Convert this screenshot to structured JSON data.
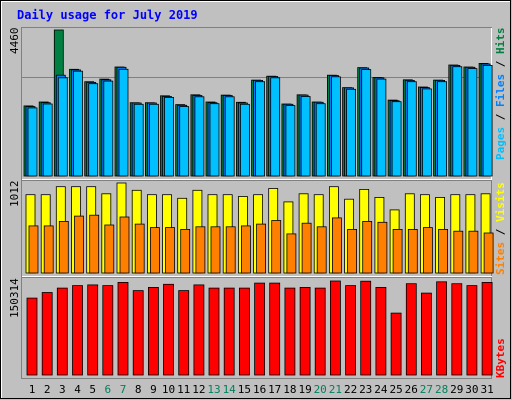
{
  "title": "Daily usage for July 2019",
  "colors": {
    "background": "#c0c0c0",
    "title_text": "#0000ff",
    "hits": "#008040",
    "files": "#0080ff",
    "pages": "#00c0ff",
    "visits": "#ffff00",
    "sites": "#ff8000",
    "kbytes": "#ff0000",
    "weekend_day_label": "#00805c",
    "weekday_label": "#000000"
  },
  "panels": {
    "top": {
      "max_label": "4460",
      "legend": [
        {
          "label": "Pages",
          "color": "#00c0ff"
        },
        {
          "label": "Files",
          "color": "#0080ff"
        },
        {
          "label": "Hits",
          "color": "#008040"
        }
      ]
    },
    "middle": {
      "max_label": "1012",
      "legend": [
        {
          "label": "Sites",
          "color": "#ff8000"
        },
        {
          "label": "Visits",
          "color": "#ffff00"
        }
      ]
    },
    "bottom": {
      "max_label": "150314",
      "legend": [
        {
          "label": "KBytes",
          "color": "#ff0000"
        }
      ]
    }
  },
  "chart_data": [
    {
      "type": "bar",
      "categories": [
        "1",
        "2",
        "3",
        "4",
        "5",
        "6",
        "7",
        "8",
        "9",
        "10",
        "11",
        "12",
        "13",
        "14",
        "15",
        "16",
        "17",
        "18",
        "19",
        "20",
        "21",
        "22",
        "23",
        "24",
        "25",
        "26",
        "27",
        "28",
        "29",
        "30",
        "31"
      ],
      "ylim": [
        0,
        4460
      ],
      "series": [
        {
          "name": "Hits",
          "values": [
            2140,
            2260,
            4460,
            3260,
            2880,
            2960,
            3330,
            2240,
            2240,
            2450,
            2180,
            2480,
            2260,
            2470,
            2250,
            2930,
            3050,
            2200,
            2480,
            2260,
            3080,
            2700,
            3310,
            3010,
            2320,
            2940,
            2720,
            2930,
            3390,
            3330,
            3440
          ]
        },
        {
          "name": "Files",
          "values": [
            2120,
            2240,
            3080,
            3240,
            2860,
            2940,
            3320,
            2230,
            2230,
            2430,
            2160,
            2460,
            2240,
            2460,
            2230,
            2920,
            3040,
            2190,
            2470,
            2250,
            3070,
            2690,
            3300,
            3000,
            2300,
            2920,
            2700,
            2920,
            3380,
            3320,
            3420
          ]
        },
        {
          "name": "Pages",
          "values": [
            2080,
            2200,
            3000,
            3200,
            2820,
            2900,
            3260,
            2190,
            2190,
            2400,
            2120,
            2420,
            2210,
            2420,
            2190,
            2880,
            3000,
            2150,
            2430,
            2210,
            3030,
            2650,
            3250,
            2960,
            2270,
            2880,
            2660,
            2880,
            3340,
            3280,
            3380
          ]
        }
      ]
    },
    {
      "type": "bar",
      "categories": [
        "1",
        "2",
        "3",
        "4",
        "5",
        "6",
        "7",
        "8",
        "9",
        "10",
        "11",
        "12",
        "13",
        "14",
        "15",
        "16",
        "17",
        "18",
        "19",
        "20",
        "21",
        "22",
        "23",
        "24",
        "25",
        "26",
        "27",
        "28",
        "29",
        "30",
        "31"
      ],
      "ylim": [
        0,
        1012
      ],
      "series": [
        {
          "name": "Visits",
          "values": [
            880,
            880,
            970,
            970,
            970,
            890,
            1012,
            930,
            880,
            880,
            840,
            930,
            880,
            880,
            860,
            880,
            950,
            800,
            890,
            880,
            970,
            830,
            940,
            850,
            710,
            890,
            880,
            850,
            880,
            880,
            890
          ]
        },
        {
          "name": "Sites",
          "values": [
            530,
            530,
            580,
            640,
            650,
            540,
            630,
            550,
            510,
            510,
            490,
            520,
            520,
            520,
            530,
            550,
            590,
            440,
            560,
            520,
            620,
            490,
            580,
            570,
            490,
            490,
            510,
            490,
            470,
            470,
            450
          ]
        }
      ]
    },
    {
      "type": "bar",
      "categories": [
        "1",
        "2",
        "3",
        "4",
        "5",
        "6",
        "7",
        "8",
        "9",
        "10",
        "11",
        "12",
        "13",
        "14",
        "15",
        "16",
        "17",
        "18",
        "19",
        "20",
        "21",
        "22",
        "23",
        "24",
        "25",
        "26",
        "27",
        "28",
        "29",
        "30",
        "31"
      ],
      "ylim": [
        0,
        150314
      ],
      "series": [
        {
          "name": "KBytes",
          "values": [
            123000,
            132000,
            139000,
            143000,
            144000,
            143000,
            148000,
            135000,
            140000,
            145000,
            135000,
            144000,
            139000,
            139000,
            139000,
            147000,
            147000,
            139000,
            140000,
            139000,
            150314,
            143000,
            150000,
            140000,
            99000,
            146000,
            131000,
            149000,
            146000,
            143000,
            148000
          ]
        }
      ]
    }
  ]
}
